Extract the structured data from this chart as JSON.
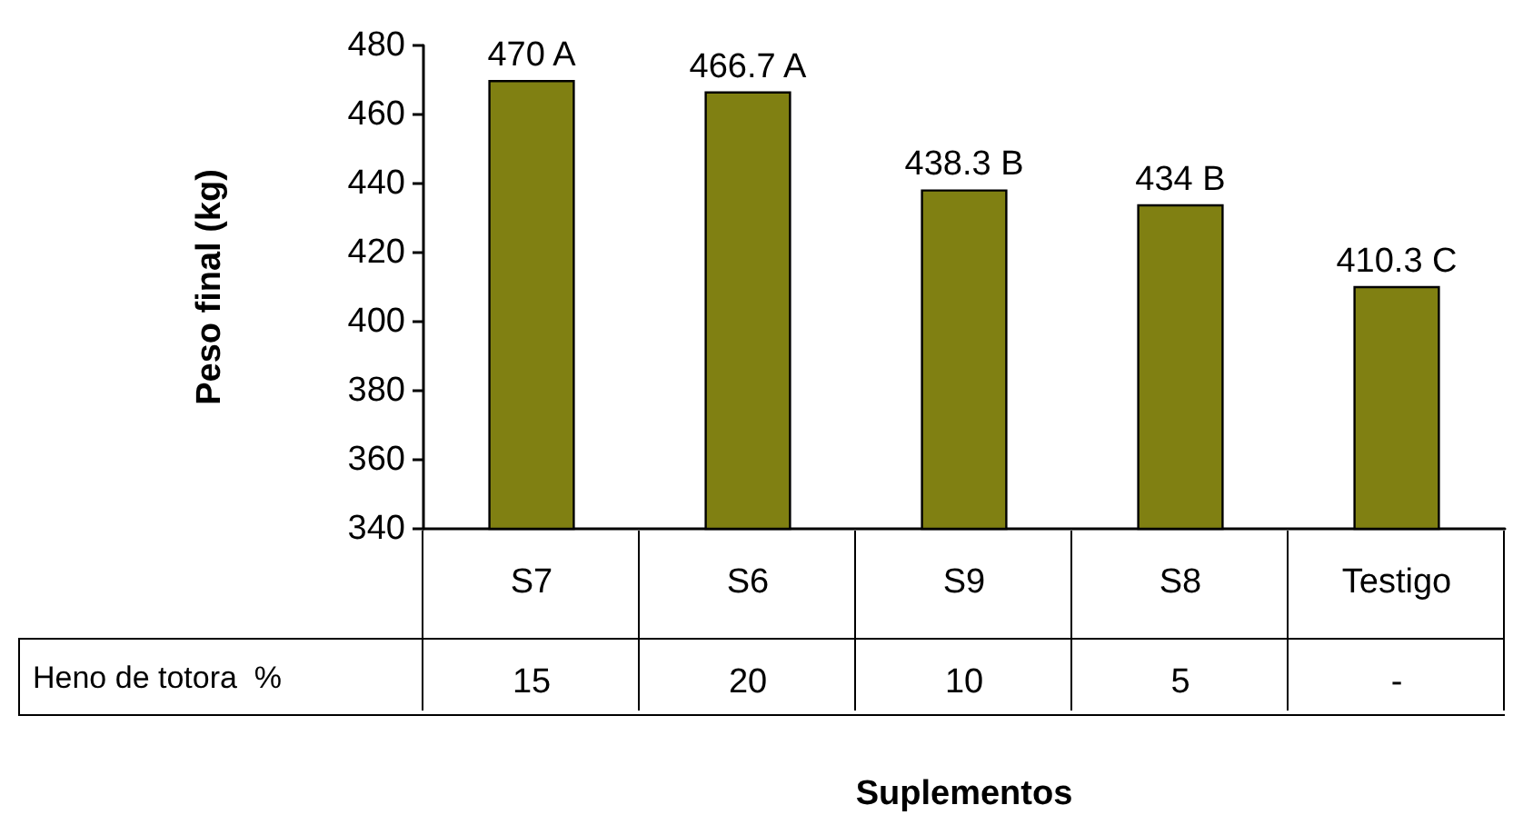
{
  "chart_data": {
    "type": "bar",
    "categories": [
      "S7",
      "S6",
      "S9",
      "S8",
      "Testigo"
    ],
    "values": [
      470,
      466.7,
      438.3,
      434,
      410.3
    ],
    "value_labels": [
      "470 A",
      "466.7 A",
      "438.3 B",
      "434 B",
      "410.3 C"
    ],
    "color": "#808012",
    "ylim": [
      340,
      480
    ],
    "yticks": [
      340,
      360,
      380,
      400,
      420,
      440,
      460,
      480
    ],
    "ylabel": "Peso final (kg)",
    "annotations": [
      "Heno de totora  %",
      "15",
      "20",
      "10",
      "5",
      "-",
      "Suplementos"
    ]
  }
}
